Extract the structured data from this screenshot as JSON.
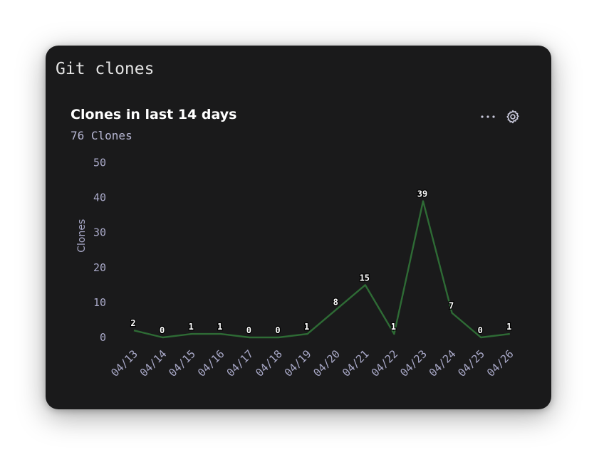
{
  "panel": {
    "title": "Git clones"
  },
  "chart": {
    "title": "Clones in last 14 days",
    "subtitle": "76 Clones"
  },
  "icons": {
    "more": "more-horizontal-icon",
    "settings": "gear-icon"
  },
  "colors": {
    "line": "#2e6b35",
    "background": "#1a1a1b"
  },
  "chart_data": {
    "type": "line",
    "categories": [
      "04/13",
      "04/14",
      "04/15",
      "04/16",
      "04/17",
      "04/18",
      "04/19",
      "04/20",
      "04/21",
      "04/22",
      "04/23",
      "04/24",
      "04/25",
      "04/26"
    ],
    "values": [
      2,
      0,
      1,
      1,
      0,
      0,
      1,
      8,
      15,
      1,
      39,
      7,
      0,
      1
    ],
    "title": "Clones in last 14 days",
    "xlabel": "",
    "ylabel": "Clones",
    "ylim": [
      0,
      50
    ],
    "yticks": [
      0,
      10,
      20,
      30,
      40,
      50
    ],
    "grid": false,
    "data_labels": true
  }
}
